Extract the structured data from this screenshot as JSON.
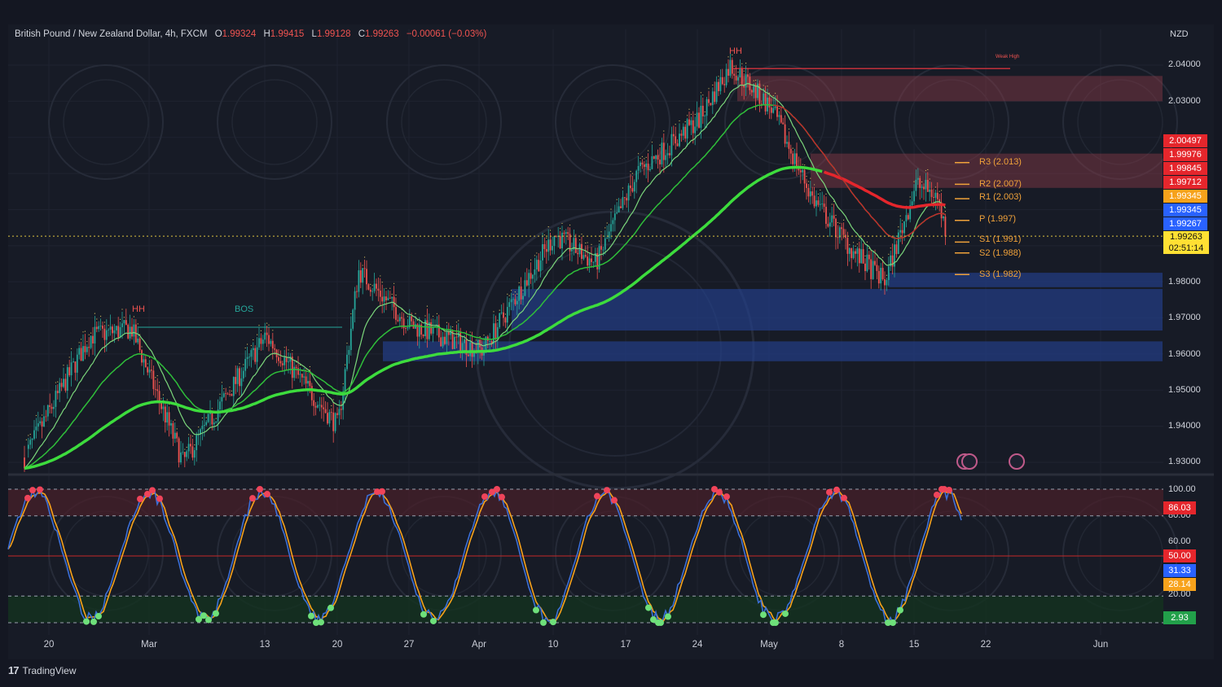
{
  "header": {
    "symbol": "British Pound / New Zealand Dollar, 4h, FXCM",
    "o_label": "O",
    "o_value": "1.99324",
    "h_label": "H",
    "h_value": "1.99415",
    "l_label": "L",
    "l_value": "1.99128",
    "c_label": "C",
    "c_value": "1.99263",
    "change": "−0.00061 (−0.03%)"
  },
  "currency_label": "NZD",
  "price_axis": {
    "ticks": [
      "2.04000",
      "2.03000",
      "1.98000",
      "1.97000",
      "1.96000",
      "1.95000",
      "1.94000",
      "1.93000"
    ]
  },
  "price_tags": [
    {
      "text": "2.00497",
      "color": "#e5262c"
    },
    {
      "text": "1.99976",
      "color": "#e5262c"
    },
    {
      "text": "1.99845",
      "color": "#e5262c"
    },
    {
      "text": "1.99712",
      "color": "#e5262c"
    },
    {
      "text": "1.99345",
      "color": "#f7a21b"
    },
    {
      "text": "1.99345",
      "color": "#2962ff"
    },
    {
      "text": "1.99267",
      "color": "#2962ff"
    }
  ],
  "current_tag": {
    "price": "1.99263",
    "countdown": "02:51:14",
    "color": "#ffe033"
  },
  "pivots": [
    {
      "label": "R3 (2.013)"
    },
    {
      "label": "R2 (2.007)"
    },
    {
      "label": "R1 (2.003)"
    },
    {
      "label": "P (1.997)"
    },
    {
      "label": "S1 (1.991)"
    },
    {
      "label": "S2 (1.988)"
    },
    {
      "label": "S3 (1.982)"
    }
  ],
  "structure_labels": {
    "hh_left": "HH",
    "bos": "BOS",
    "hh_top": "HH",
    "weak_high": "Weak High"
  },
  "oscillator_axis": {
    "ticks": [
      "100.00",
      "80.00",
      "60.00",
      "20.00"
    ],
    "tags": [
      {
        "text": "86.03",
        "color": "#e5262c"
      },
      {
        "text": "50.00",
        "color": "#e5262c"
      },
      {
        "text": "31.33",
        "color": "#2962ff"
      },
      {
        "text": "28.14",
        "color": "#f7a21b"
      },
      {
        "text": "2.93",
        "color": "#22a04a"
      }
    ]
  },
  "date_axis": [
    "20",
    "Mar",
    "13",
    "20",
    "27",
    "Apr",
    "10",
    "17",
    "24",
    "May",
    "8",
    "15",
    "22",
    "Jun"
  ],
  "brand": "TradingView",
  "colors": {
    "bull": "#26a69a",
    "bear": "#ef5350",
    "ema_green": "#3ddc3d",
    "ema_red": "#e5262c",
    "supply": "#8c3c4a",
    "demand": "#23408f"
  },
  "chart_data": {
    "type": "candlestick",
    "title": "British Pound / New Zealand Dollar, 4h, FXCM",
    "ylabel": "NZD",
    "ylim": [
      1.926,
      2.046
    ],
    "x_range": [
      "Feb 16",
      "Jun 8"
    ],
    "trend_path": [
      {
        "date": "Feb 17",
        "price": 1.928
      },
      {
        "date": "Feb 24",
        "price": 1.965
      },
      {
        "date": "Feb 28",
        "price": 1.967
      },
      {
        "date": "Mar 5",
        "price": 1.93
      },
      {
        "date": "Mar 13",
        "price": 1.965
      },
      {
        "date": "Mar 20",
        "price": 1.94
      },
      {
        "date": "Mar 22",
        "price": 1.983
      },
      {
        "date": "Mar 27",
        "price": 1.968
      },
      {
        "date": "Apr 3",
        "price": 1.961
      },
      {
        "date": "Apr 10",
        "price": 1.993
      },
      {
        "date": "Apr 14",
        "price": 1.985
      },
      {
        "date": "Apr 18",
        "price": 2.01
      },
      {
        "date": "Apr 24",
        "price": 2.025
      },
      {
        "date": "Apr 27",
        "price": 2.04
      },
      {
        "date": "May 1",
        "price": 2.028
      },
      {
        "date": "May 5",
        "price": 2.003
      },
      {
        "date": "May 9",
        "price": 1.988
      },
      {
        "date": "May 12",
        "price": 1.98
      },
      {
        "date": "May 15",
        "price": 2.007
      },
      {
        "date": "May 17",
        "price": 2.004
      },
      {
        "date": "May 18",
        "price": 1.993
      }
    ],
    "last_close": 1.99263,
    "pivot_levels": {
      "R3": 2.013,
      "R2": 2.007,
      "R1": 2.003,
      "P": 1.997,
      "S1": 1.991,
      "S2": 1.988,
      "S3": 1.982
    },
    "supply_zones": [
      [
        2.03,
        2.037
      ],
      [
        2.006,
        2.0155
      ]
    ],
    "demand_zones": [
      [
        1.9785,
        1.9825
      ],
      [
        1.9665,
        1.978
      ],
      [
        1.958,
        1.9635
      ]
    ],
    "oscillator": {
      "ylim": [
        0,
        100
      ],
      "levels": [
        100,
        80,
        50,
        20,
        0
      ],
      "last_values": {
        "fast": 31.33,
        "slow": 28.14
      }
    }
  }
}
